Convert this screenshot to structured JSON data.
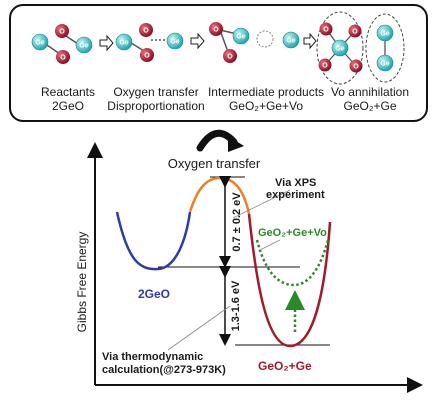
{
  "top_panel": {
    "steps": [
      {
        "line1": "Reactants",
        "line2": "2GeO"
      },
      {
        "line1": "Oxygen transfer",
        "line2": "Disproportionation"
      },
      {
        "line1": "Intermediate products",
        "line2": "GeO₂+Ge+Vo"
      },
      {
        "line1": "Vo annihilation",
        "line2": "GeO₂+Ge"
      }
    ],
    "atoms": {
      "ge": "Ge",
      "o": "O"
    }
  },
  "curved_arrow_label": "Oxygen transfer",
  "axis": {
    "ylabel": "Gibbs Free Energy"
  },
  "annotations": {
    "xps_line1": "Via XPS",
    "xps_line2": "experiment",
    "barrier": "0.7 ± 0.2 eV",
    "reaction_energy": "1.3-1.6 eV",
    "reactant": "2GeO",
    "intermediate": "GeO₂+Ge+Vo",
    "product": "GeO₂+Ge",
    "thermo_line1": "Via thermodynamic",
    "thermo_line2": "calculation(@273-973K)"
  },
  "colors": {
    "ge_atom": "#38c6c9",
    "o_atom": "#b01f2d",
    "left_well": "#2f3aa8",
    "barrier_top": "#f07f1f",
    "right_well": "#9e1c2c",
    "intermediate_well": "#2a8a2a"
  }
}
